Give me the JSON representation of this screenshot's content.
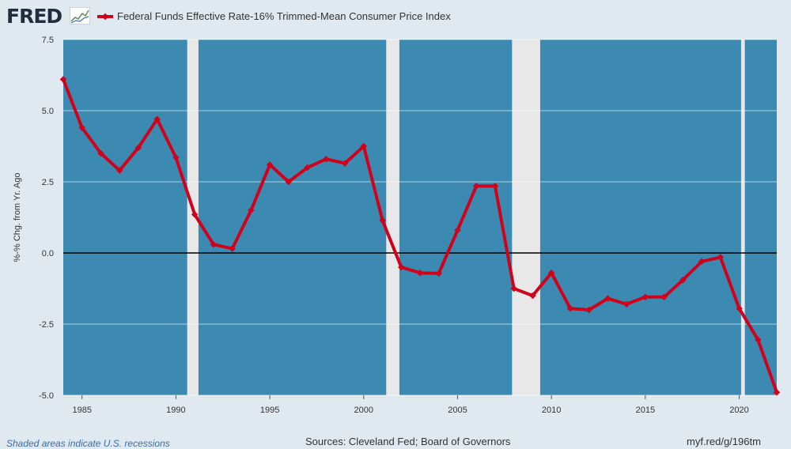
{
  "header": {
    "logo_text": "FRED",
    "legend_label": "Federal Funds Effective Rate-16% Trimmed-Mean Consumer Price Index"
  },
  "colors": {
    "background": "#e1e9f0",
    "plot_background": "#3c8ab2",
    "recession_shading": "#e8e8e8",
    "series": "#d0021b",
    "zero_line": "#000000",
    "gridline": "#ffffff"
  },
  "icons": {
    "logo_graph": "line-graph-icon"
  },
  "chart_data": {
    "type": "line",
    "title": "",
    "xlabel": "",
    "ylabel": "%-% Chg. from Yr. Ago",
    "xlim": [
      1984,
      2022
    ],
    "ylim": [
      -5,
      7.5
    ],
    "yticks": [
      -5,
      -2.5,
      0,
      2.5,
      5,
      7.5
    ],
    "ytick_labels": [
      "-5.0",
      "-2.5",
      "0.0",
      "2.5",
      "5.0",
      "7.5"
    ],
    "xticks": [
      1985,
      1990,
      1995,
      2000,
      2005,
      2010,
      2015,
      2020
    ],
    "xtick_labels": [
      "1985",
      "1990",
      "1995",
      "2000",
      "2005",
      "2010",
      "2015",
      "2020"
    ],
    "grid": true,
    "legend_position": "top-left",
    "recessions": [
      [
        1990.6,
        1991.2
      ],
      [
        2001.2,
        2001.9
      ],
      [
        2007.9,
        2009.4
      ],
      [
        2020.1,
        2020.3
      ]
    ],
    "series": [
      {
        "name": "Federal Funds Effective Rate-16% Trimmed-Mean Consumer Price Index",
        "x": [
          1984,
          1985,
          1986,
          1987,
          1988,
          1989,
          1990,
          1991,
          1992,
          1993,
          1994,
          1995,
          1996,
          1997,
          1998,
          1999,
          2000,
          2001,
          2002,
          2003,
          2004,
          2005,
          2006,
          2007,
          2008,
          2009,
          2010,
          2011,
          2012,
          2013,
          2014,
          2015,
          2016,
          2017,
          2018,
          2019,
          2020,
          2021,
          2022
        ],
        "values": [
          6.1,
          4.4,
          3.5,
          2.9,
          3.7,
          4.7,
          3.35,
          1.35,
          0.3,
          0.15,
          1.5,
          3.1,
          2.5,
          3.0,
          3.3,
          3.15,
          3.75,
          1.15,
          -0.5,
          -0.7,
          -0.72,
          0.8,
          2.35,
          2.35,
          -1.25,
          -1.5,
          -0.7,
          -1.95,
          -2.0,
          -1.6,
          -1.8,
          -1.55,
          -1.55,
          -0.95,
          -0.3,
          -0.15,
          -1.95,
          -3.05,
          -4.9
        ]
      }
    ]
  },
  "footer": {
    "note": "Shaded areas indicate U.S. recessions",
    "sources": "Sources: Cleveland Fed; Board of Governors",
    "link": "myf.red/g/196tm"
  }
}
